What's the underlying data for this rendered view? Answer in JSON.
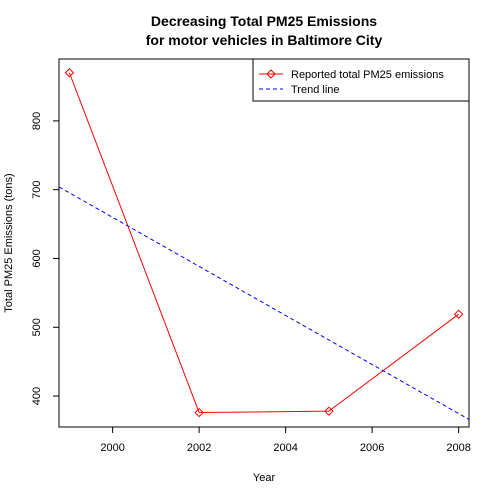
{
  "chart_data": {
    "type": "line",
    "title_lines": [
      "Decreasing Total PM25 Emissions",
      "for motor vehicles in Baltimore City"
    ],
    "xlabel": "Year",
    "ylabel": "Total PM25 Emissions (tons)",
    "xlim": [
      1998.76,
      2008.24
    ],
    "ylim": [
      355,
      890
    ],
    "xticks": [
      2000,
      2002,
      2004,
      2006,
      2008
    ],
    "yticks": [
      400,
      500,
      600,
      700,
      800
    ],
    "grid": false,
    "legend_position": "top-right",
    "series": [
      {
        "name": "Reported total PM25 emissions",
        "kind": "line-with-markers",
        "marker": "diamond",
        "color": "#ff0000",
        "x": [
          1999,
          2002,
          2005,
          2008
        ],
        "y": [
          870,
          376,
          378,
          519
        ]
      },
      {
        "name": "Trend line",
        "kind": "dashed-line",
        "color": "#0000ff",
        "x": [
          1998.76,
          2008.24
        ],
        "y": [
          704,
          366
        ]
      }
    ]
  }
}
